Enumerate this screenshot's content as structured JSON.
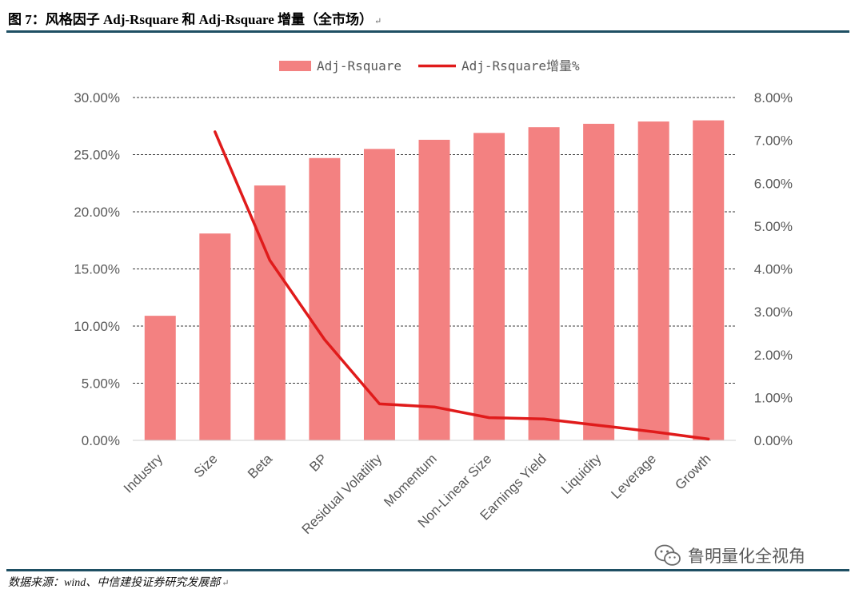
{
  "figure": {
    "title": "图 7：风格因子 Adj-Rsquare 和 Adj-Rsquare 增量（全市场）",
    "return_mark": "↵",
    "source": "数据来源：wind、中信建投证券研究发展部",
    "watermark_text": "鲁明量化全视角",
    "watermark_icon": "wechat-icon"
  },
  "chart_data": {
    "type": "bar",
    "categories": [
      "Industry",
      "Size",
      "Beta",
      "BP",
      "Residual Volatility",
      "Momentum",
      "Non-Linear Size",
      "Earnings Yield",
      "Liquidity",
      "Leverage",
      "Growth"
    ],
    "series": [
      {
        "name": "Adj-Rsquare",
        "type": "bar",
        "axis": "left",
        "color": "#f38181",
        "values": [
          10.9,
          18.1,
          22.3,
          24.7,
          25.5,
          26.3,
          26.9,
          27.4,
          27.7,
          27.9,
          28.0
        ]
      },
      {
        "name": "Adj-Rsquare增量%",
        "type": "line",
        "axis": "right",
        "color": "#e01b1b",
        "values": [
          null,
          7.2,
          4.2,
          2.35,
          0.85,
          0.78,
          0.53,
          0.5,
          0.35,
          0.2,
          0.03
        ]
      }
    ],
    "y_left": {
      "ylim": [
        0,
        30
      ],
      "ticks": [
        "0.00%",
        "5.00%",
        "10.00%",
        "15.00%",
        "20.00%",
        "25.00%",
        "30.00%"
      ]
    },
    "y_right": {
      "ylim": [
        0,
        8
      ],
      "ticks": [
        "0.00%",
        "1.00%",
        "2.00%",
        "3.00%",
        "4.00%",
        "5.00%",
        "6.00%",
        "7.00%",
        "8.00%"
      ]
    },
    "grid": "horizontal-dashed",
    "legend": "top-center"
  }
}
